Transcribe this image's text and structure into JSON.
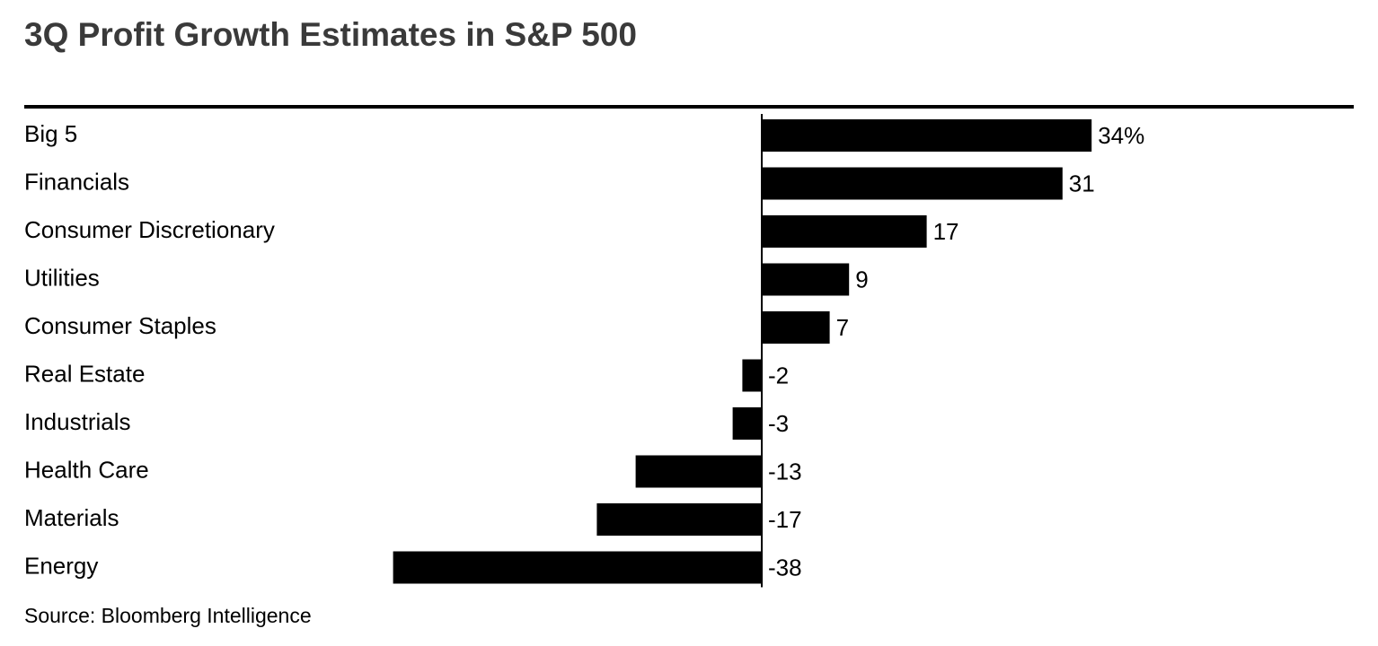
{
  "title": "3Q Profit Growth Estimates in S&P 500",
  "source": "Source: Bloomberg Intelligence",
  "colors": {
    "bar": "#000000",
    "title": "#3a3a3a",
    "rule": "#000000",
    "background": "#ffffff"
  },
  "chart_data": {
    "type": "bar",
    "orientation": "horizontal",
    "title": "3Q Profit Growth Estimates in S&P 500",
    "unit": "%",
    "categories": [
      "Big 5",
      "Financials",
      "Consumer Discretionary",
      "Utilities",
      "Consumer Staples",
      "Real Estate",
      "Industrials",
      "Health Care",
      "Materials",
      "Energy"
    ],
    "values": [
      34,
      31,
      17,
      9,
      7,
      -2,
      -3,
      -13,
      -17,
      -38
    ],
    "value_labels": [
      "34%",
      "31",
      "17",
      "9",
      "7",
      "-2",
      "-3",
      "-13",
      "-17",
      "-38"
    ],
    "xlim": [
      -38,
      34
    ],
    "grid": false,
    "legend": "none",
    "zero_line": true
  }
}
